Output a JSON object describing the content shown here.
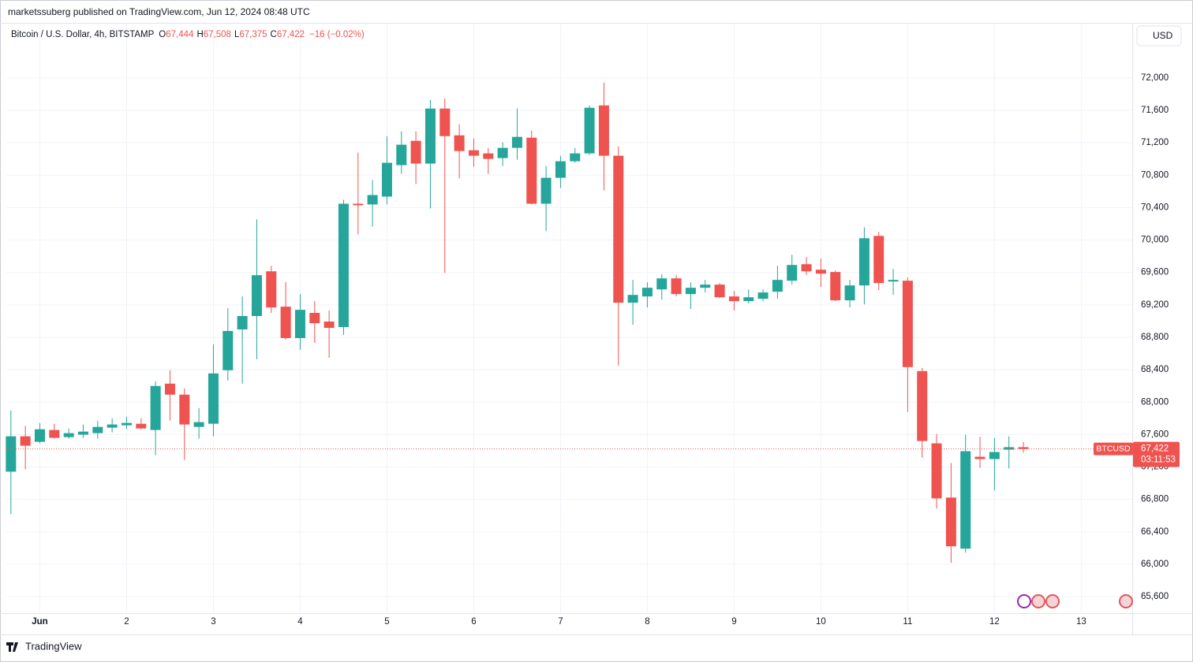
{
  "header": {
    "published": "marketssuberg published on TradingView.com, Jun 12, 2024 08:48 UTC",
    "currency_button": "USD",
    "footer_logo": "TradingView"
  },
  "chart_data": {
    "type": "candlestick",
    "symbol": "Bitcoin / U.S. Dollar, 4h, BITSTAMP",
    "status_line": [
      {
        "key": "O",
        "text": "67,444"
      },
      {
        "key": "H",
        "text": "67,508"
      },
      {
        "key": "L",
        "text": "67,375"
      },
      {
        "key": "C",
        "text": "67,422"
      }
    ],
    "change": "−16 (−0.02%)",
    "up_color": "#26a69a",
    "down_color": "#ef5350",
    "x": [
      -8,
      -4,
      0,
      4,
      8,
      12,
      16,
      20,
      24,
      28,
      32,
      36,
      40,
      44,
      48,
      52,
      56,
      60,
      64,
      68,
      72,
      76,
      80,
      84,
      88,
      92,
      96,
      100,
      104,
      108,
      112,
      116,
      120,
      124,
      128,
      132,
      136,
      140,
      144,
      148,
      152,
      156,
      160,
      164,
      168,
      172,
      176,
      180,
      184,
      188,
      192,
      196,
      200,
      204,
      208,
      212,
      216,
      220,
      224,
      228,
      232,
      236,
      240,
      244,
      248,
      252,
      256,
      260,
      264,
      268,
      272
    ],
    "open": [
      67142,
      67578,
      67510,
      67656,
      67568,
      67598,
      67617,
      67685,
      67714,
      67733,
      67656,
      68228,
      68092,
      67694,
      67733,
      68393,
      68897,
      69062,
      69614,
      69178,
      68790,
      69101,
      68994,
      68926,
      70448,
      70439,
      70536,
      70924,
      71224,
      70943,
      71622,
      71292,
      71108,
      71069,
      71011,
      71137,
      71263,
      70448,
      70768,
      70972,
      71069,
      71661,
      71040,
      69227,
      69304,
      69391,
      69527,
      69333,
      69411,
      69450,
      69304,
      69246,
      69275,
      69362,
      69498,
      69702,
      69634,
      69605,
      69256,
      69440,
      70051,
      69488,
      69498,
      68383,
      67491,
      66822,
      66192,
      67326,
      67297,
      67413,
      67444
    ],
    "high": [
      67898,
      67704,
      67743,
      67733,
      67675,
      67724,
      67772,
      67801,
      67821,
      67801,
      68257,
      68393,
      68170,
      67927,
      68713,
      69159,
      69304,
      70255,
      69682,
      69479,
      69333,
      69246,
      69130,
      70497,
      71079,
      70739,
      71282,
      71341,
      71341,
      71728,
      71748,
      71428,
      71253,
      71137,
      71205,
      71622,
      71350,
      70914,
      71040,
      71137,
      71661,
      71942,
      71156,
      69508,
      69479,
      69576,
      69566,
      69479,
      69508,
      69469,
      69372,
      69391,
      69391,
      69682,
      69818,
      69789,
      69770,
      69624,
      69508,
      70158,
      70100,
      69644,
      69537,
      68422,
      67607,
      67248,
      67598,
      67569,
      67559,
      67578,
      67508
    ],
    "low": [
      66618,
      67171,
      67491,
      67549,
      67549,
      67559,
      67549,
      67627,
      67665,
      67665,
      67345,
      67772,
      67287,
      67549,
      67578,
      68267,
      68228,
      68529,
      69101,
      68771,
      68645,
      68732,
      68548,
      68829,
      70070,
      70167,
      70439,
      70817,
      70691,
      70390,
      69595,
      70759,
      70904,
      70817,
      70914,
      70991,
      70439,
      70109,
      70642,
      70953,
      71050,
      70613,
      68451,
      68955,
      69168,
      69265,
      69304,
      69149,
      69353,
      69285,
      69130,
      69217,
      69246,
      69275,
      69450,
      69566,
      69421,
      69246,
      69168,
      69207,
      69382,
      69324,
      67879,
      67316,
      66686,
      66017,
      66143,
      67190,
      66909,
      67181,
      67375
    ],
    "close": [
      67578,
      67462,
      67665,
      67559,
      67617,
      67636,
      67694,
      67724,
      67743,
      67675,
      68199,
      68092,
      67724,
      67753,
      68354,
      68878,
      69062,
      69566,
      69168,
      68790,
      69139,
      68974,
      68916,
      70448,
      70429,
      70555,
      70953,
      71176,
      70943,
      71622,
      71282,
      71098,
      71040,
      71001,
      71137,
      71273,
      70448,
      70768,
      70972,
      71069,
      71632,
      71040,
      69227,
      69323,
      69411,
      69527,
      69333,
      69411,
      69450,
      69294,
      69246,
      69294,
      69353,
      69508,
      69692,
      69614,
      69585,
      69256,
      69440,
      70022,
      69469,
      69508,
      68432,
      67520,
      66812,
      66221,
      67394,
      67297,
      67384,
      67444,
      67422
    ],
    "xlim": [
      -9.27,
      302.1
    ],
    "xticks": [
      {
        "value": 0,
        "label": "Jun"
      },
      {
        "value": 24,
        "label": "2"
      },
      {
        "value": 48,
        "label": "3"
      },
      {
        "value": 72,
        "label": "4"
      },
      {
        "value": 96,
        "label": "5"
      },
      {
        "value": 120,
        "label": "6"
      },
      {
        "value": 144,
        "label": "7"
      },
      {
        "value": 168,
        "label": "8"
      },
      {
        "value": 192,
        "label": "9"
      },
      {
        "value": 216,
        "label": "10"
      },
      {
        "value": 240,
        "label": "11"
      },
      {
        "value": 264,
        "label": "12"
      },
      {
        "value": 288,
        "label": "13"
      }
    ],
    "ylim": [
      65396,
      72670
    ],
    "yticks": [
      {
        "value": 65600,
        "label": "65,600"
      },
      {
        "value": 66000,
        "label": "66,000"
      },
      {
        "value": 66400,
        "label": "66,400"
      },
      {
        "value": 66800,
        "label": "66,800"
      },
      {
        "value": 67200,
        "label": "67,200"
      },
      {
        "value": 67600,
        "label": "67,600"
      },
      {
        "value": 68000,
        "label": "68,000"
      },
      {
        "value": 68400,
        "label": "68,400"
      },
      {
        "value": 68800,
        "label": "68,800"
      },
      {
        "value": 69200,
        "label": "69,200"
      },
      {
        "value": 69600,
        "label": "69,600"
      },
      {
        "value": 70000,
        "label": "70,000"
      },
      {
        "value": 70400,
        "label": "70,400"
      },
      {
        "value": 70800,
        "label": "70,800"
      },
      {
        "value": 71200,
        "label": "71,200"
      },
      {
        "value": 71600,
        "label": "71,600"
      },
      {
        "value": 72000,
        "label": "72,000"
      }
    ],
    "grid": true,
    "price_tag": {
      "symbol": "BTCUSD",
      "price": {
        "value": 67422,
        "label": "67,422"
      },
      "countdown": "03:11:53"
    }
  }
}
